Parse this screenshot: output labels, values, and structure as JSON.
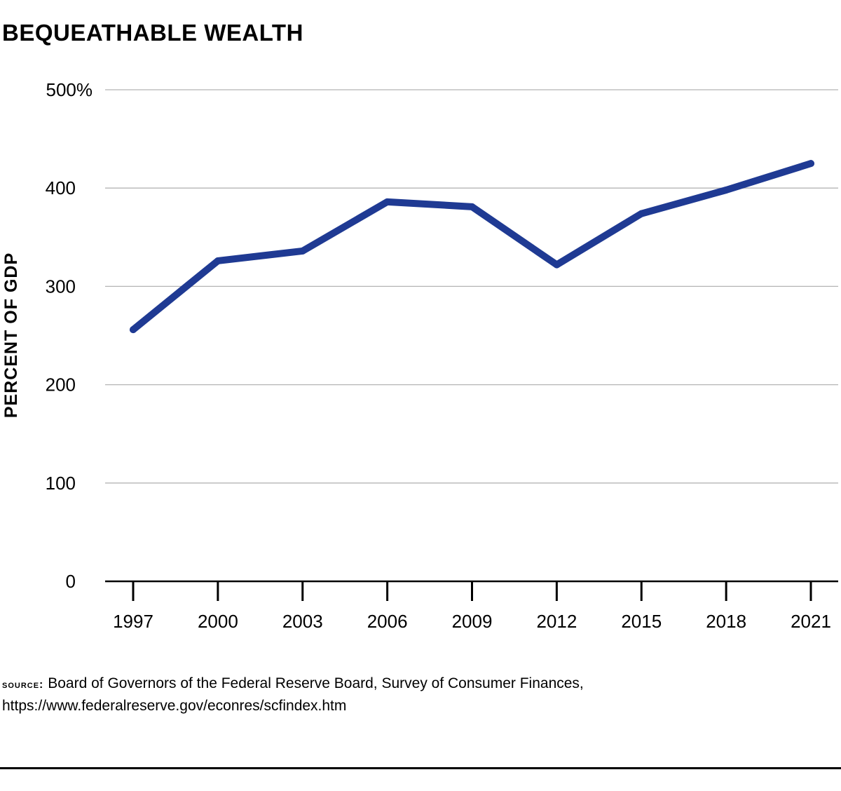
{
  "chart_data": {
    "type": "line",
    "title": "BEQUEATHABLE WEALTH",
    "ylabel": "PERCENT OF GDP",
    "xlabel": "",
    "categories": [
      "1997",
      "2000",
      "2003",
      "2006",
      "2009",
      "2012",
      "2015",
      "2018",
      "2021"
    ],
    "y_tick_labels": [
      "0",
      "100",
      "200",
      "300",
      "400",
      "500%"
    ],
    "y_ticks": [
      0,
      100,
      200,
      300,
      400,
      500
    ],
    "ylim": [
      0,
      500
    ],
    "grid": true,
    "series": [
      {
        "name": "Bequeathable wealth",
        "values": [
          256,
          326,
          336,
          386,
          381,
          322,
          374,
          398,
          425
        ],
        "color": "#1f3a93"
      }
    ]
  },
  "source": {
    "label": "SOURCE:",
    "text": "Board of Governors of the Federal Reserve Board, Survey of Consumer Finances,",
    "url": "https://www.federalreserve.gov/econres/scfindex.htm"
  }
}
